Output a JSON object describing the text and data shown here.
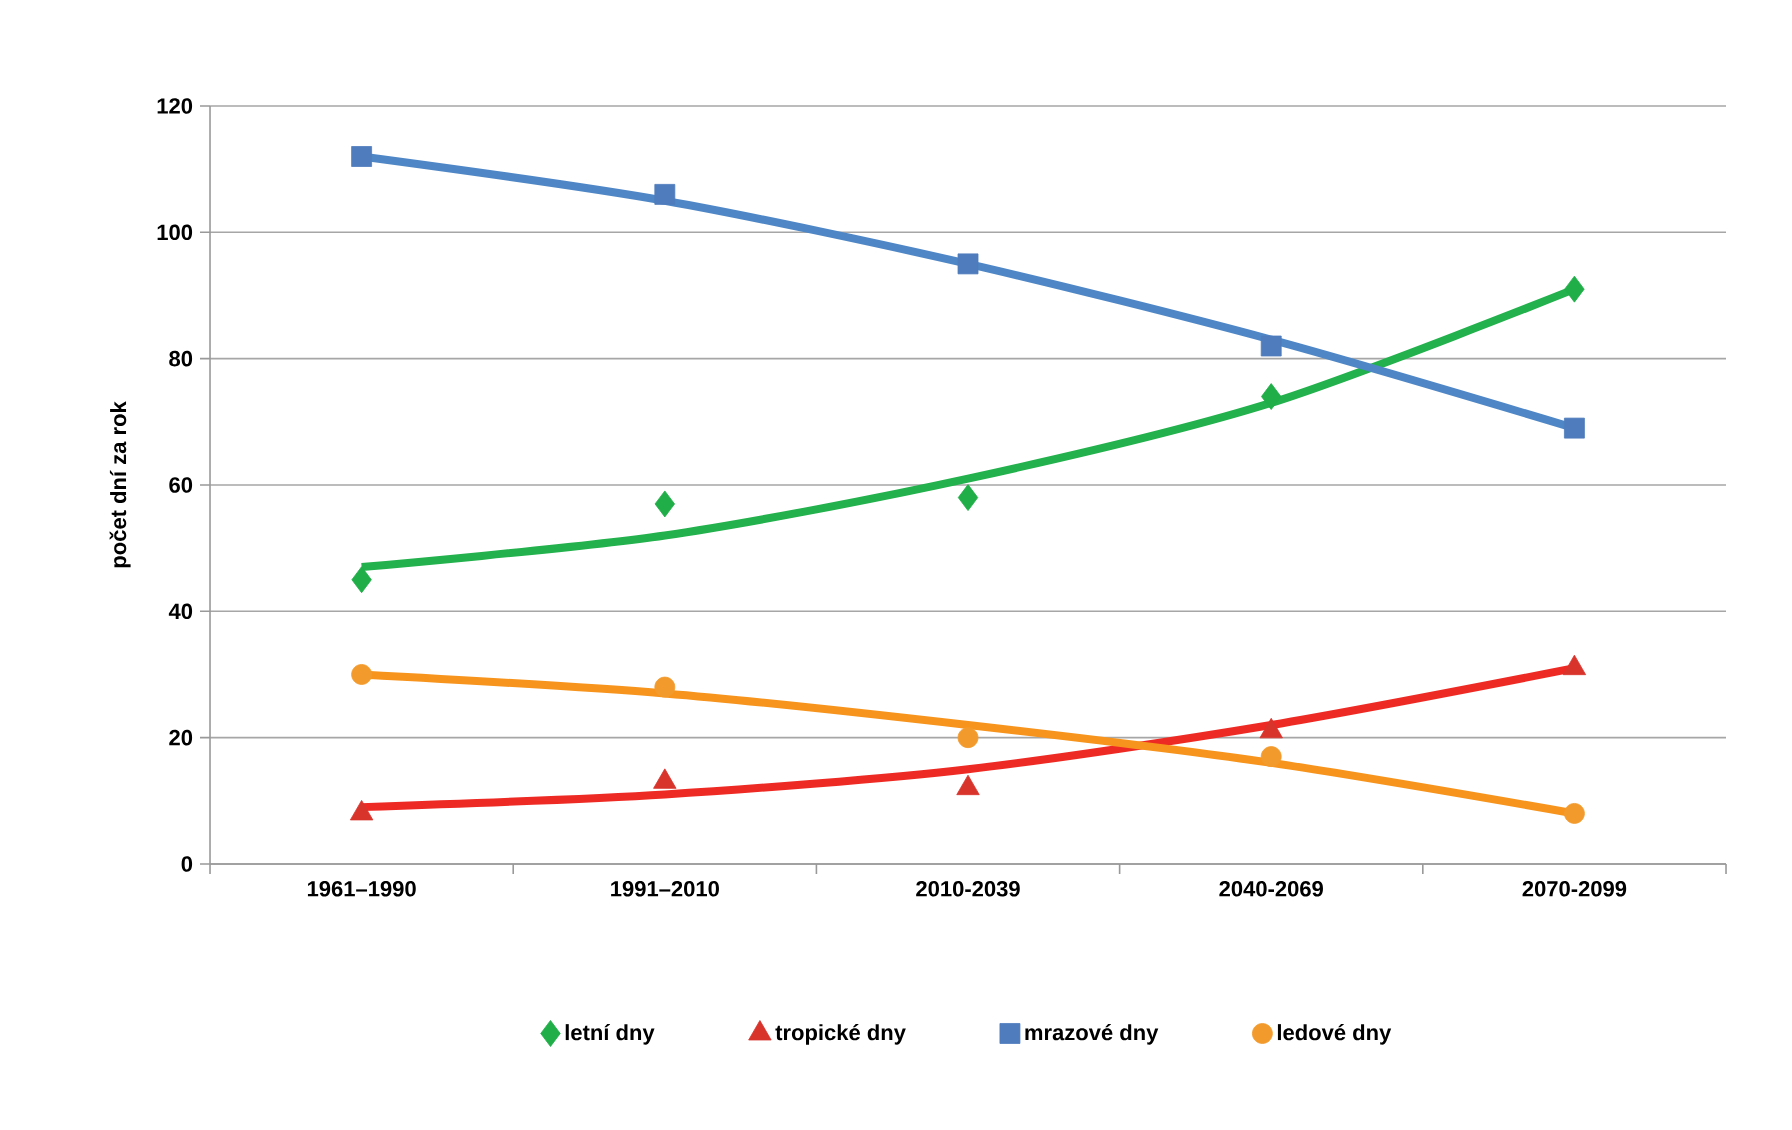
{
  "chart_data": {
    "type": "scatter",
    "ylabel": "počet dní za rok",
    "categories": [
      "1961–1990",
      "1991–2010",
      "2010-2039",
      "2040-2069",
      "2070-2099"
    ],
    "ylim": [
      0,
      120
    ],
    "yticks": [
      0,
      20,
      40,
      60,
      80,
      100,
      120
    ],
    "grid": "y",
    "legend": "bottom",
    "series": [
      {
        "name": "letní dny",
        "marker": "diamond",
        "color": "#1fae48",
        "values": [
          45,
          57,
          58,
          74,
          91
        ]
      },
      {
        "name": "tropické dny",
        "marker": "triangle",
        "color": "#d8342c",
        "values": [
          8,
          13,
          12,
          21,
          31
        ]
      },
      {
        "name": "mrazové dny",
        "marker": "square",
        "color": "#4f7cbd",
        "values": [
          112,
          106,
          95,
          82,
          69
        ]
      },
      {
        "name": "ledové dny",
        "marker": "circle",
        "color": "#f39a2c",
        "values": [
          30,
          28,
          20,
          17,
          8
        ]
      },
      {
        "type": "line",
        "color": "#22b14c",
        "values": [
          47,
          52,
          61,
          73,
          91
        ]
      },
      {
        "type": "line",
        "color": "#ee2a24",
        "values": [
          9,
          11,
          15,
          22,
          31
        ]
      },
      {
        "type": "line",
        "color": "#4f87c6",
        "values": [
          112,
          105,
          95,
          83,
          69
        ]
      },
      {
        "type": "line",
        "color": "#f7941d",
        "values": [
          30,
          27,
          22,
          16,
          8
        ]
      }
    ]
  }
}
